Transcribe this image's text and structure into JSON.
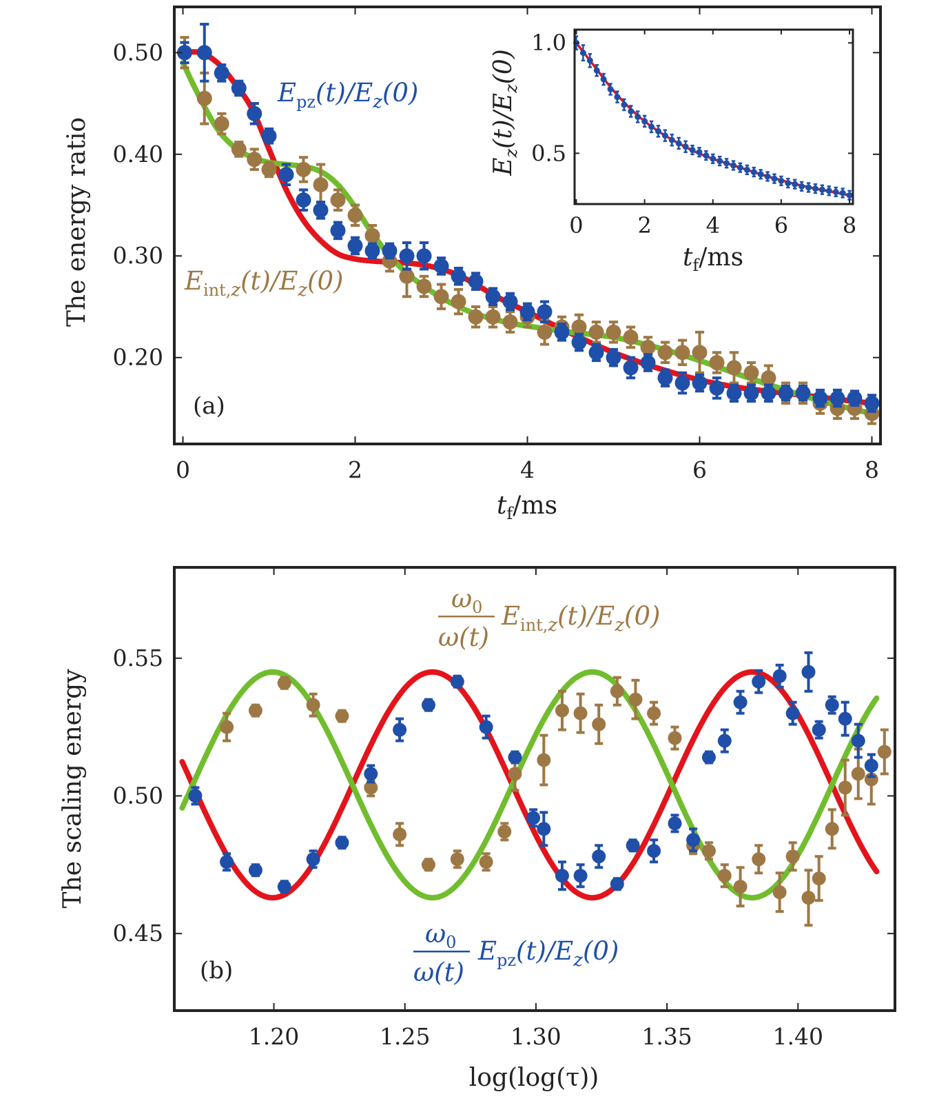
{
  "colors": {
    "red": "#e3141b",
    "green": "#71bd2e",
    "blue": "#1f4fa8",
    "brown": "#9d7845",
    "inset_line": "#5f77c4",
    "axis": "#222222"
  },
  "chart_data": [
    {
      "id": "a",
      "type": "scatter",
      "panel_label": "(a)",
      "xlabel": "t_f/ms",
      "ylabel": "The energy ratio",
      "xlim": [
        -0.1,
        8.1
      ],
      "ylim": [
        0.115,
        0.545
      ],
      "xticks": [
        {
          "value": 0,
          "label": "0"
        },
        {
          "value": 2,
          "label": "2"
        },
        {
          "value": 4,
          "label": "4"
        },
        {
          "value": 6,
          "label": "6"
        },
        {
          "value": 8,
          "label": "8"
        }
      ],
      "yticks": [
        {
          "value": 0.2,
          "label": "0.20"
        },
        {
          "value": 0.3,
          "label": "0.30"
        },
        {
          "value": 0.4,
          "label": "0.40"
        },
        {
          "value": 0.5,
          "label": "0.50"
        }
      ],
      "annotations": [
        {
          "id": "epz",
          "main": "E",
          "sub": "pz",
          "rest": "(t)/E",
          "sub2": "z",
          "tail": "(0)",
          "color": "blue"
        },
        {
          "id": "eint",
          "main": "E",
          "sub": "int,z",
          "rest": "(t)/E",
          "sub2": "z",
          "tail": "(0)",
          "color": "brown"
        }
      ],
      "series": [
        {
          "name": "E_pz(t)/E_z(0)",
          "color": "blue",
          "x": [
            0.02,
            0.25,
            0.45,
            0.65,
            0.83,
            1.0,
            1.2,
            1.4,
            1.6,
            1.8,
            2.0,
            2.2,
            2.4,
            2.6,
            2.8,
            3.0,
            3.2,
            3.4,
            3.6,
            3.8,
            4.0,
            4.2,
            4.4,
            4.6,
            4.8,
            5.0,
            5.2,
            5.4,
            5.6,
            5.8,
            6.0,
            6.2,
            6.4,
            6.6,
            6.8,
            7.0,
            7.2,
            7.4,
            7.6,
            7.8,
            8.0
          ],
          "y": [
            0.5,
            0.5,
            0.48,
            0.465,
            0.44,
            0.418,
            0.38,
            0.355,
            0.345,
            0.325,
            0.31,
            0.305,
            0.305,
            0.3,
            0.3,
            0.29,
            0.28,
            0.275,
            0.26,
            0.255,
            0.245,
            0.245,
            0.225,
            0.215,
            0.205,
            0.2,
            0.19,
            0.195,
            0.18,
            0.175,
            0.175,
            0.17,
            0.165,
            0.165,
            0.165,
            0.165,
            0.165,
            0.16,
            0.16,
            0.16,
            0.155
          ],
          "yerr": [
            0.01,
            0.028,
            0.008,
            0.007,
            0.01,
            0.007,
            0.01,
            0.01,
            0.008,
            0.008,
            0.008,
            0.007,
            0.007,
            0.013,
            0.013,
            0.008,
            0.008,
            0.008,
            0.008,
            0.008,
            0.008,
            0.01,
            0.008,
            0.008,
            0.008,
            0.008,
            0.01,
            0.008,
            0.008,
            0.01,
            0.008,
            0.01,
            0.008,
            0.008,
            0.008,
            0.007,
            0.007,
            0.008,
            0.008,
            0.007,
            0.008
          ]
        },
        {
          "name": "E_int,z(t)/E_z(0)",
          "color": "brown",
          "x": [
            0.02,
            0.25,
            0.45,
            0.65,
            0.83,
            1.0,
            1.2,
            1.4,
            1.6,
            1.8,
            2.0,
            2.2,
            2.4,
            2.6,
            2.8,
            3.0,
            3.2,
            3.4,
            3.6,
            3.8,
            4.0,
            4.2,
            4.4,
            4.6,
            4.8,
            5.0,
            5.2,
            5.4,
            5.6,
            5.8,
            6.0,
            6.2,
            6.4,
            6.6,
            6.8,
            7.0,
            7.2,
            7.4,
            7.6,
            7.8,
            8.0
          ],
          "y": [
            0.5,
            0.455,
            0.43,
            0.405,
            0.395,
            0.385,
            0.38,
            0.385,
            0.37,
            0.355,
            0.34,
            0.32,
            0.295,
            0.28,
            0.27,
            0.26,
            0.255,
            0.24,
            0.24,
            0.235,
            0.24,
            0.225,
            0.23,
            0.23,
            0.225,
            0.225,
            0.22,
            0.21,
            0.205,
            0.205,
            0.205,
            0.195,
            0.19,
            0.185,
            0.18,
            0.165,
            0.165,
            0.155,
            0.15,
            0.15,
            0.145
          ],
          "yerr": [
            0.015,
            0.025,
            0.01,
            0.007,
            0.01,
            0.007,
            0.01,
            0.012,
            0.02,
            0.01,
            0.01,
            0.01,
            0.01,
            0.02,
            0.01,
            0.012,
            0.012,
            0.01,
            0.01,
            0.01,
            0.01,
            0.012,
            0.01,
            0.012,
            0.01,
            0.01,
            0.01,
            0.01,
            0.01,
            0.012,
            0.02,
            0.01,
            0.015,
            0.01,
            0.012,
            0.01,
            0.01,
            0.01,
            0.01,
            0.01,
            0.01
          ]
        }
      ],
      "fits": [
        {
          "color": "red",
          "x": [
            0,
            0.2,
            0.4,
            0.6,
            0.8,
            1.0,
            1.2,
            1.4,
            1.6,
            1.8,
            2.0,
            2.2,
            2.4,
            2.6,
            2.8,
            3.0,
            3.2,
            3.4,
            3.6,
            3.8,
            4.0,
            4.5,
            5.0,
            5.5,
            6.0,
            6.5,
            7.0,
            7.5,
            8.0
          ],
          "y": [
            0.5,
            0.5,
            0.49,
            0.47,
            0.445,
            0.405,
            0.365,
            0.335,
            0.315,
            0.302,
            0.297,
            0.295,
            0.294,
            0.293,
            0.291,
            0.287,
            0.281,
            0.272,
            0.262,
            0.253,
            0.245,
            0.224,
            0.205,
            0.19,
            0.178,
            0.17,
            0.165,
            0.16,
            0.155
          ]
        },
        {
          "color": "green",
          "x": [
            0,
            0.2,
            0.4,
            0.6,
            0.8,
            1.0,
            1.2,
            1.4,
            1.6,
            1.8,
            2.0,
            2.2,
            2.4,
            2.6,
            2.8,
            3.0,
            3.2,
            3.4,
            3.6,
            3.8,
            4.0,
            4.5,
            5.0,
            5.5,
            6.0,
            6.5,
            7.0,
            7.5,
            8.0
          ],
          "y": [
            0.49,
            0.455,
            0.425,
            0.407,
            0.397,
            0.392,
            0.39,
            0.388,
            0.383,
            0.37,
            0.348,
            0.322,
            0.3,
            0.283,
            0.27,
            0.259,
            0.25,
            0.243,
            0.238,
            0.234,
            0.231,
            0.225,
            0.22,
            0.21,
            0.197,
            0.182,
            0.168,
            0.155,
            0.145
          ]
        }
      ]
    },
    {
      "id": "a-inset",
      "type": "scatter",
      "xlabel": "t_f/ms",
      "ylabel": "E_z(t)/E_z(0)",
      "xlim": [
        -0.05,
        8.1
      ],
      "ylim": [
        0.27,
        1.06
      ],
      "xticks": [
        {
          "value": 0,
          "label": "0"
        },
        {
          "value": 2,
          "label": "2"
        },
        {
          "value": 4,
          "label": "4"
        },
        {
          "value": 6,
          "label": "6"
        },
        {
          "value": 8,
          "label": "8"
        }
      ],
      "yticks": [
        {
          "value": 0.5,
          "label": "0.5"
        },
        {
          "value": 1.0,
          "label": "1.0"
        }
      ],
      "series": [
        {
          "name": "E_z(t)/E_z(0)",
          "color": "blue",
          "x": [
            0,
            0.2,
            0.4,
            0.6,
            0.8,
            1.0,
            1.2,
            1.4,
            1.6,
            1.8,
            2.0,
            2.2,
            2.4,
            2.6,
            2.8,
            3.0,
            3.2,
            3.4,
            3.6,
            3.8,
            4.0,
            4.2,
            4.4,
            4.6,
            4.8,
            5.0,
            5.2,
            5.4,
            5.6,
            5.8,
            6.0,
            6.2,
            6.4,
            6.6,
            6.8,
            7.0,
            7.2,
            7.4,
            7.6,
            7.8,
            8.0
          ],
          "y": [
            1.0,
            0.955,
            0.92,
            0.875,
            0.835,
            0.79,
            0.755,
            0.72,
            0.69,
            0.665,
            0.645,
            0.62,
            0.6,
            0.58,
            0.56,
            0.545,
            0.53,
            0.515,
            0.505,
            0.49,
            0.475,
            0.465,
            0.455,
            0.445,
            0.435,
            0.425,
            0.415,
            0.405,
            0.395,
            0.385,
            0.375,
            0.365,
            0.36,
            0.35,
            0.345,
            0.34,
            0.335,
            0.33,
            0.325,
            0.32,
            0.31
          ],
          "yerr": [
            0.03,
            0.035,
            0.03,
            0.025,
            0.025,
            0.025,
            0.025,
            0.025,
            0.025,
            0.025,
            0.025,
            0.025,
            0.025,
            0.025,
            0.025,
            0.025,
            0.025,
            0.02,
            0.02,
            0.02,
            0.02,
            0.02,
            0.02,
            0.02,
            0.02,
            0.02,
            0.02,
            0.02,
            0.02,
            0.02,
            0.02,
            0.02,
            0.02,
            0.02,
            0.02,
            0.02,
            0.02,
            0.02,
            0.02,
            0.02,
            0.02
          ]
        }
      ],
      "fits": [
        {
          "color": "red",
          "x": [
            0,
            0.5,
            1.0,
            1.5,
            2.0,
            2.5,
            3.0,
            3.5,
            4.0,
            4.5,
            5.0,
            5.5,
            6.0,
            6.5,
            7.0,
            7.5,
            8.0
          ],
          "y": [
            1.0,
            0.9,
            0.8,
            0.715,
            0.645,
            0.59,
            0.545,
            0.505,
            0.475,
            0.45,
            0.425,
            0.4,
            0.378,
            0.357,
            0.34,
            0.325,
            0.31
          ]
        }
      ]
    },
    {
      "id": "b",
      "type": "scatter",
      "panel_label": "(b)",
      "xlabel": "log(log(τ))",
      "ylabel": "The scaling energy",
      "xlim": [
        1.162,
        1.437
      ],
      "ylim": [
        0.422,
        0.583
      ],
      "xticks": [
        {
          "value": 1.2,
          "label": "1.20"
        },
        {
          "value": 1.25,
          "label": "1.25"
        },
        {
          "value": 1.3,
          "label": "1.30"
        },
        {
          "value": 1.35,
          "label": "1.35"
        },
        {
          "value": 1.4,
          "label": "1.40"
        }
      ],
      "yticks": [
        {
          "value": 0.45,
          "label": "0.45"
        },
        {
          "value": 0.5,
          "label": "0.50"
        },
        {
          "value": 0.55,
          "label": "0.55"
        }
      ],
      "annotations": [
        {
          "id": "b-eint",
          "num": "ω",
          "num_sub": "0",
          "den": "ω(t)",
          "main": "E",
          "sub": "int,z",
          "rest": "(t)/E",
          "sub2": "z",
          "tail": "(0)",
          "color": "brown"
        },
        {
          "id": "b-epz",
          "num": "ω",
          "num_sub": "0",
          "den": "ω(t)",
          "main": "E",
          "sub": "pz",
          "rest": "(t)/E",
          "sub2": "z",
          "tail": "(0)",
          "color": "blue"
        }
      ],
      "series": [
        {
          "name": "ω0/ω(t) E_pz(t)/E_z(0)",
          "color": "blue",
          "x": [
            1.17,
            1.182,
            1.193,
            1.204,
            1.215,
            1.226,
            1.237,
            1.248,
            1.259,
            1.27,
            1.281,
            1.292,
            1.299,
            1.303,
            1.31,
            1.317,
            1.324,
            1.331,
            1.337,
            1.345,
            1.353,
            1.36,
            1.366,
            1.372,
            1.378,
            1.385,
            1.393,
            1.398,
            1.404,
            1.408,
            1.413,
            1.418,
            1.423,
            1.428
          ],
          "y": [
            0.5,
            0.476,
            0.473,
            0.467,
            0.477,
            0.483,
            0.508,
            0.524,
            0.533,
            0.5415,
            0.525,
            0.514,
            0.492,
            0.488,
            0.471,
            0.471,
            0.478,
            0.468,
            0.482,
            0.48,
            0.49,
            0.484,
            0.514,
            0.52,
            0.534,
            0.5415,
            0.5435,
            0.53,
            0.545,
            0.524,
            0.533,
            0.528,
            0.52,
            0.511
          ],
          "yerr": [
            0.003,
            0.003,
            0.002,
            0.002,
            0.003,
            0.002,
            0.003,
            0.004,
            0.002,
            0.002,
            0.004,
            0.002,
            0.003,
            0.006,
            0.005,
            0.004,
            0.004,
            0.002,
            0.002,
            0.004,
            0.003,
            0.004,
            0.002,
            0.004,
            0.004,
            0.004,
            0.004,
            0.004,
            0.007,
            0.003,
            0.003,
            0.006,
            0.006,
            0.004
          ]
        },
        {
          "name": "ω0/ω(t) E_int,z(t)/E_z(0)",
          "color": "brown",
          "x": [
            1.182,
            1.193,
            1.204,
            1.215,
            1.226,
            1.237,
            1.248,
            1.259,
            1.27,
            1.281,
            1.288,
            1.292,
            1.303,
            1.31,
            1.317,
            1.324,
            1.331,
            1.338,
            1.345,
            1.353,
            1.36,
            1.366,
            1.372,
            1.378,
            1.385,
            1.393,
            1.398,
            1.404,
            1.408,
            1.413,
            1.418,
            1.423,
            1.428,
            1.433
          ],
          "y": [
            0.525,
            0.531,
            0.541,
            0.533,
            0.529,
            0.503,
            0.486,
            0.475,
            0.477,
            0.476,
            0.487,
            0.508,
            0.513,
            0.531,
            0.53,
            0.526,
            0.538,
            0.535,
            0.53,
            0.521,
            0.482,
            0.48,
            0.471,
            0.467,
            0.477,
            0.465,
            0.478,
            0.463,
            0.47,
            0.488,
            0.503,
            0.508,
            0.506,
            0.516
          ],
          "yerr": [
            0.005,
            0.002,
            0.002,
            0.004,
            0.002,
            0.003,
            0.004,
            0.002,
            0.003,
            0.003,
            0.003,
            0.006,
            0.009,
            0.007,
            0.007,
            0.007,
            0.005,
            0.007,
            0.004,
            0.004,
            0.003,
            0.003,
            0.004,
            0.007,
            0.005,
            0.007,
            0.005,
            0.01,
            0.008,
            0.007,
            0.01,
            0.009,
            0.009,
            0.008
          ]
        }
      ],
      "fits": [
        {
          "color": "red",
          "model": "sine",
          "x_start": 1.165,
          "x_end": 1.43,
          "mean": 0.504,
          "amplitude": 0.041,
          "period": 0.122,
          "phase_x": 1.1995,
          "sign": -1
        },
        {
          "color": "green",
          "model": "sine",
          "x_start": 1.165,
          "x_end": 1.43,
          "mean": 0.504,
          "amplitude": 0.041,
          "period": 0.122,
          "phase_x": 1.1995,
          "sign": 1
        }
      ]
    }
  ]
}
